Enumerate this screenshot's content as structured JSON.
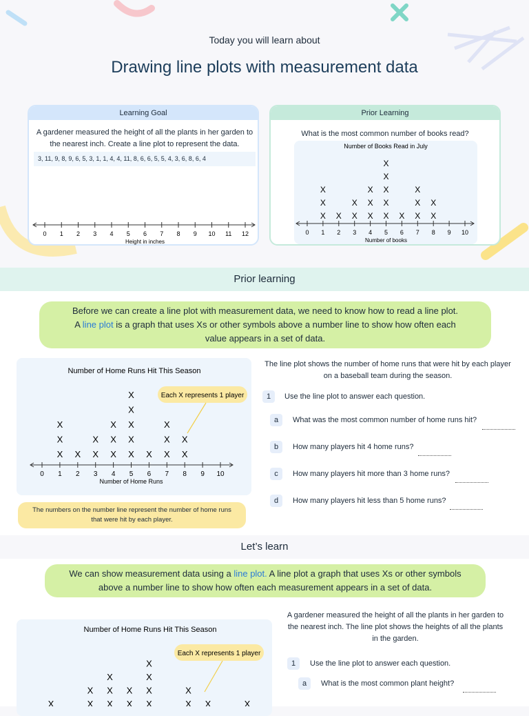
{
  "header": {
    "subtitle": "Today you will learn about",
    "title": "Drawing line plots with measurement data"
  },
  "learning_goal": {
    "heading": "Learning Goal",
    "prompt": "A gardener measured the height of all the plants in her garden to the nearest inch. Create a line plot to represent the data.",
    "data_list": "3, 11, 9, 8, 9, 6, 5, 3, 1, 1, 4, 4, 11, 8, 6, 6, 5, 5, 4, 3, 6, 8, 6, 4",
    "plot": {
      "xlim": [
        0,
        12
      ],
      "xticks": [
        0,
        1,
        2,
        3,
        4,
        5,
        6,
        7,
        8,
        9,
        10,
        11,
        12
      ],
      "x_label": "Height in inches"
    }
  },
  "prior_card": {
    "heading": "Prior Learning",
    "question": "What is the most common number of books read?",
    "plot": {
      "title": "Number of Books Read in July",
      "xlim": [
        0,
        10
      ],
      "xticks": [
        0,
        1,
        2,
        3,
        4,
        5,
        6,
        7,
        8,
        9,
        10
      ],
      "x_label": "Number of books",
      "values": [
        1,
        2,
        3,
        4,
        5,
        6,
        7,
        8
      ],
      "counts": [
        3,
        1,
        2,
        3,
        5,
        1,
        3,
        2
      ],
      "symbol": "X"
    }
  },
  "prior_section": {
    "heading": "Prior learning",
    "callout": {
      "line1": "Before we can create a line plot with measurement data, we need to know how to read a line plot.",
      "before": "A",
      "term": "line plot",
      "after": "is a graph that uses Xs or other symbols above a number line to show how often each value appears in a set of data."
    },
    "plot": {
      "title": "Number of Home Runs Hit This Season",
      "key": "Each X represents 1 player",
      "xlim": [
        0,
        10
      ],
      "xticks": [
        0,
        1,
        2,
        3,
        4,
        5,
        6,
        7,
        8,
        9,
        10
      ],
      "x_label": "Number of Home Runs",
      "values": [
        1,
        2,
        3,
        4,
        5,
        6,
        7,
        8
      ],
      "counts": [
        3,
        1,
        2,
        3,
        5,
        1,
        3,
        2
      ],
      "symbol": "X"
    },
    "note": "The numbers on the number line represent the number of home runs that were hit by each player.",
    "intro": "The line plot shows the number of home runs that were hit by each player on a baseball team during the season.",
    "question": {
      "number": "1",
      "text": "Use the line plot to answer each question.",
      "parts": [
        {
          "letter": "a",
          "text": "What was the most common number of home runs hit?"
        },
        {
          "letter": "b",
          "text": "How many players hit 4 home runs?"
        },
        {
          "letter": "c",
          "text": "How many players hit more than 3 home runs?"
        },
        {
          "letter": "d",
          "text": "How many players hit less than 5 home runs?"
        }
      ]
    }
  },
  "lets_learn": {
    "heading": "Let’s learn",
    "callout": {
      "before": "We can show measurement data using a",
      "term": "line plot.",
      "after": "A line plot a graph that uses Xs or other symbols above a number line to show how often each measurement appears in a set of data."
    },
    "intro": "A gardener measured the height of all the plants in her garden to the nearest inch. The line plot shows the heights of all the plants in the garden.",
    "plot": {
      "title": "Number of Home Runs Hit This Season",
      "key": "Each X represents 1 player",
      "counts": [
        1,
        0,
        2,
        3,
        2,
        4,
        0,
        2,
        1,
        0,
        1
      ],
      "symbol": "X"
    },
    "question": {
      "number": "1",
      "text": "Use the line plot to answer each question.",
      "parts": [
        {
          "letter": "a",
          "text": "What is the most common plant height?"
        }
      ]
    }
  }
}
